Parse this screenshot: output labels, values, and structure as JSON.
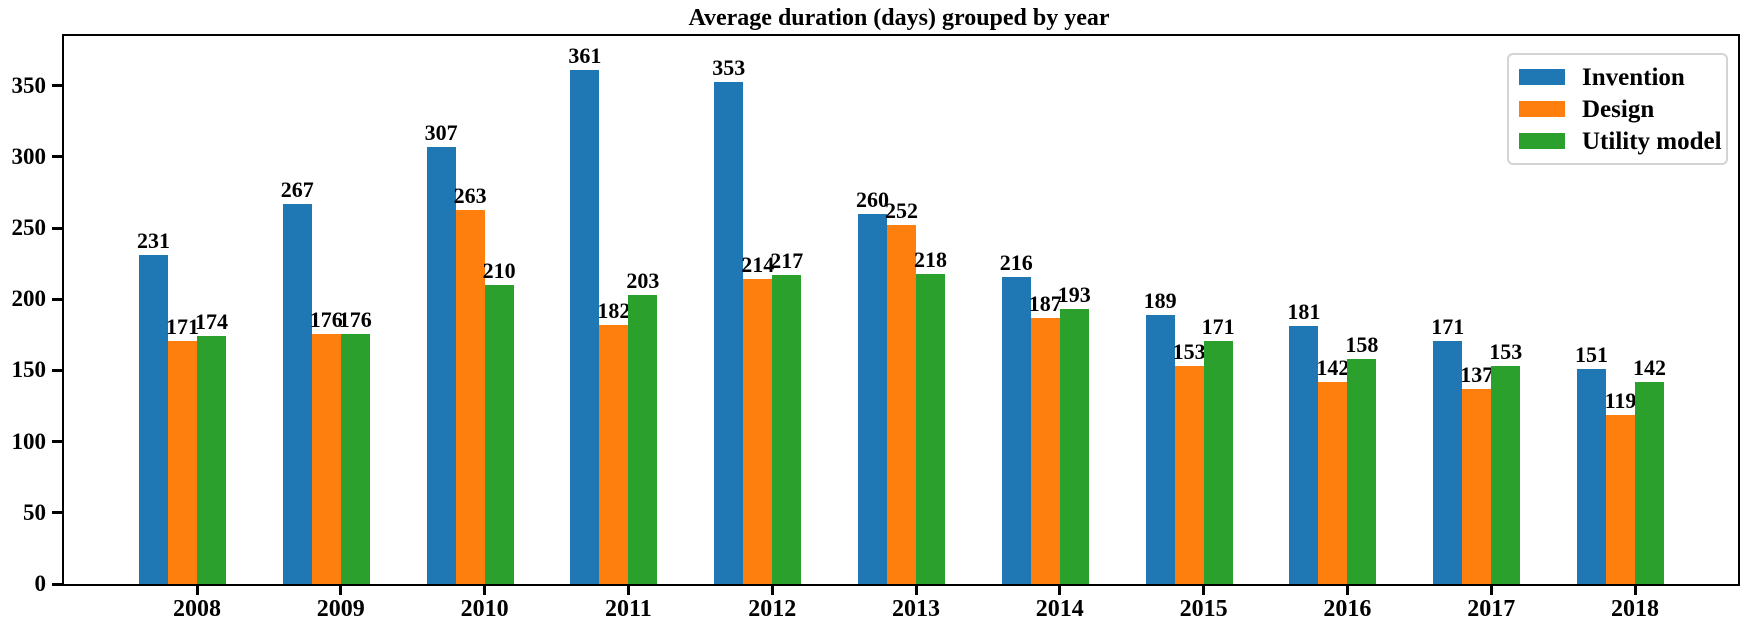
{
  "figure": {
    "title": "Average duration (days) grouped by year"
  },
  "chart_data": {
    "type": "bar",
    "title": "Average duration (days) grouped by year",
    "categories": [
      "2008",
      "2009",
      "2010",
      "2011",
      "2012",
      "2013",
      "2014",
      "2015",
      "2016",
      "2017",
      "2018"
    ],
    "series": [
      {
        "name": "Invention",
        "color": "#1f77b4",
        "values": [
          231,
          267,
          307,
          361,
          353,
          260,
          216,
          189,
          181,
          171,
          151
        ]
      },
      {
        "name": "Design",
        "color": "#ff7f0e",
        "values": [
          171,
          176,
          263,
          182,
          214,
          252,
          187,
          153,
          142,
          137,
          119
        ]
      },
      {
        "name": "Utility model",
        "color": "#2ca02c",
        "values": [
          174,
          176,
          210,
          203,
          217,
          218,
          193,
          171,
          158,
          153,
          142
        ]
      }
    ],
    "xlabel": "",
    "ylabel": "",
    "ylim": [
      0,
      385
    ],
    "yticks": [
      0,
      50,
      100,
      150,
      200,
      250,
      300,
      350
    ],
    "bar_value_labels": true,
    "grid": false,
    "legend": {
      "position": "upper right",
      "entries": [
        "Invention",
        "Design",
        "Utility model"
      ]
    },
    "axis_color": "#000000",
    "background_color": "#ffffff"
  }
}
